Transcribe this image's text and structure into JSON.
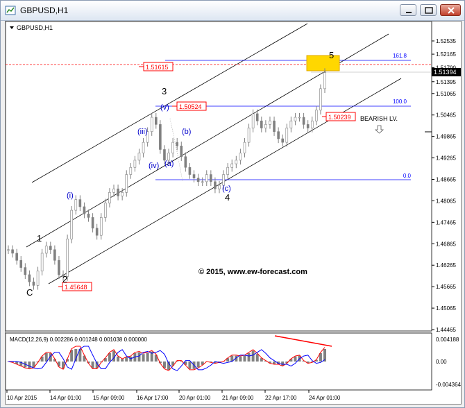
{
  "window": {
    "title": "GBPUSD,H1",
    "minimize_icon": "minimize-icon",
    "restore_icon": "restore-icon",
    "close_icon": "close-icon"
  },
  "chart": {
    "symbol_label": "GBPUSD,H1",
    "copyright": "© 2015, www.ew-forecast.com",
    "bearish_label": "BEARISH LV.",
    "macd_label": "MACD(12,26,9) 0.002286 0.001248 0.001038 0.000000",
    "price_labels": {
      "high_line": "1.51615",
      "wave3_line": "1.50524",
      "low_line": "1.45648",
      "bearish_line": "1.50239",
      "current_price": "1.51394"
    },
    "fib_labels": {
      "f161": "161.8",
      "f100": "100.0",
      "f0": "0.0"
    },
    "wave_labels": {
      "C": "C",
      "w1": "1",
      "w2": "2",
      "w3": "3",
      "w4": "4",
      "w5": "5",
      "i": "(i)",
      "iii": "(iii)",
      "iv": "(iv)",
      "v": "(v)",
      "a": "(a)",
      "b": "(b)",
      "c": "(c)"
    },
    "colors": {
      "up_candle": "#808080",
      "macd_line": "#ff0000",
      "signal_line": "#0000ff",
      "fib_line": "#0000ff",
      "channel": "#000000",
      "highlight_box": "#ffd700",
      "divergence": "#ff0000"
    }
  },
  "chart_data": {
    "type": "line",
    "title": "GBPUSD,H1",
    "y_ticks": [
      "1.52535",
      "1.52165",
      "1.51790",
      "1.51395",
      "1.51065",
      "1.50465",
      "1.49865",
      "1.49265",
      "1.48665",
      "1.48065",
      "1.47465",
      "1.46865",
      "1.46265",
      "1.45665",
      "1.45065",
      "1.44465"
    ],
    "x_ticks": [
      "10 Apr 2015",
      "14 Apr 01:00",
      "15 Apr 09:00",
      "16 Apr 17:00",
      "20 Apr 01:00",
      "21 Apr 09:00",
      "22 Apr 17:00",
      "24 Apr 01:00"
    ],
    "ylim": [
      1.44465,
      1.52535
    ],
    "macd_ticks": [
      "0.004188",
      "0.00",
      "-0.004364"
    ],
    "series": [
      {
        "values": [
          1.467,
          1.466,
          1.464,
          1.462,
          1.46,
          1.458,
          1.457,
          1.461,
          1.466,
          1.468,
          1.467,
          1.464,
          1.46,
          1.4595,
          1.47,
          1.478,
          1.481,
          1.479,
          1.477,
          1.476,
          1.473,
          1.471,
          1.476,
          1.48,
          1.483,
          1.484,
          1.482,
          1.483,
          1.488,
          1.49,
          1.492,
          1.494,
          1.497,
          1.5,
          1.504,
          1.502,
          1.495,
          1.492,
          1.494,
          1.497,
          1.496,
          1.493,
          1.49,
          1.488,
          1.487,
          1.486,
          1.486,
          1.488,
          1.486,
          1.484,
          1.485,
          1.488,
          1.49,
          1.491,
          1.492,
          1.494,
          1.497,
          1.501,
          1.505,
          1.503,
          1.501,
          1.502,
          1.503,
          1.5,
          1.498,
          1.497,
          1.501,
          1.503,
          1.504,
          1.504,
          1.502,
          1.501,
          1.503,
          1.506,
          1.512,
          1.5165
        ]
      }
    ]
  }
}
